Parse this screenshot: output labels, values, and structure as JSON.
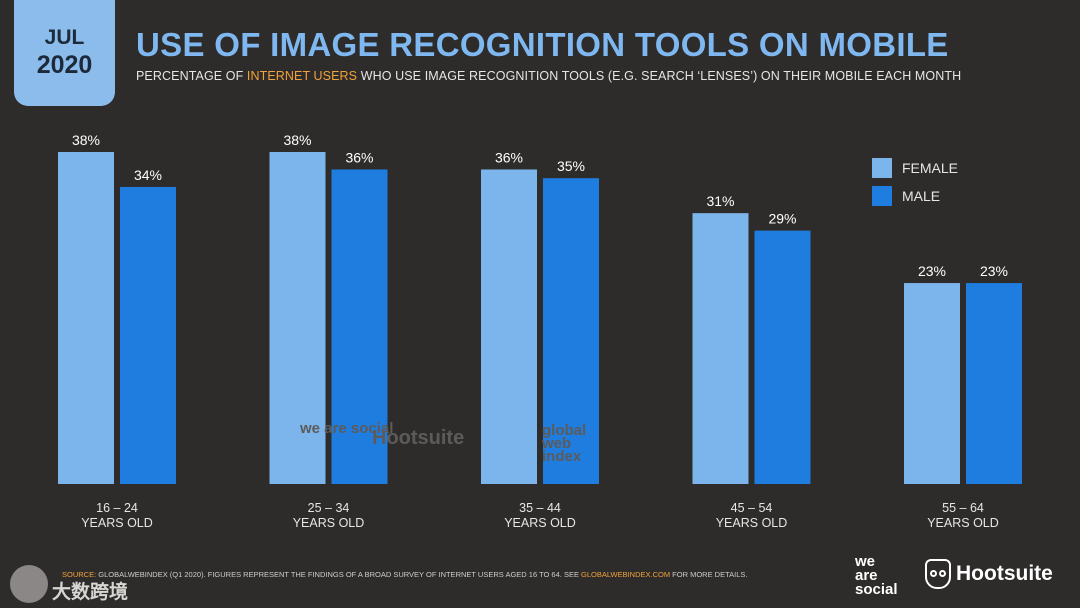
{
  "badge": {
    "month": "JUL",
    "year": "2020"
  },
  "header": {
    "title": "USE OF IMAGE RECOGNITION TOOLS ON MOBILE",
    "subtitle_pre": "PERCENTAGE OF ",
    "subtitle_highlight": "INTERNET USERS",
    "subtitle_post": " WHO USE IMAGE RECOGNITION TOOLS (E.G. SEARCH ‘LENSES’) ON THEIR MOBILE EACH MONTH"
  },
  "colors": {
    "female": "#7cb5eb",
    "male": "#1f7de0",
    "accent": "#f2a23a",
    "background": "#2e2c2b"
  },
  "chart_data": {
    "type": "bar",
    "categories": [
      "16 – 24",
      "25 – 34",
      "35 – 44",
      "45 – 54",
      "55 – 64"
    ],
    "category_sublabel": "YEARS OLD",
    "series": [
      {
        "name": "FEMALE",
        "values": [
          38,
          38,
          36,
          31,
          23
        ],
        "labels": [
          "38%",
          "38%",
          "36%",
          "31%",
          "23%"
        ]
      },
      {
        "name": "MALE",
        "values": [
          34,
          36,
          35,
          29,
          23
        ],
        "labels": [
          "34%",
          "36%",
          "35%",
          "29%",
          "23%"
        ]
      }
    ],
    "ylim": [
      0,
      38
    ],
    "legend_position": "right",
    "grid": false
  },
  "source": {
    "label": "SOURCE:",
    "text_pre": " GLOBALWEBINDEX (Q1 2020). FIGURES REPRESENT THE FINDINGS OF A BROAD SURVEY OF INTERNET USERS AGED 16 TO 64. SEE ",
    "link": "GLOBALWEBINDEX.COM",
    "text_post": " FOR MORE DETAILS."
  },
  "watermarks": {
    "was": "we are social",
    "hs": "Hootsuite",
    "gwi": "global web index"
  },
  "brands": {
    "was_line1": "we",
    "was_line2": "are",
    "was_line3": "social",
    "hootsuite": "Hootsuite"
  },
  "corner": {
    "text": "大数跨境"
  }
}
